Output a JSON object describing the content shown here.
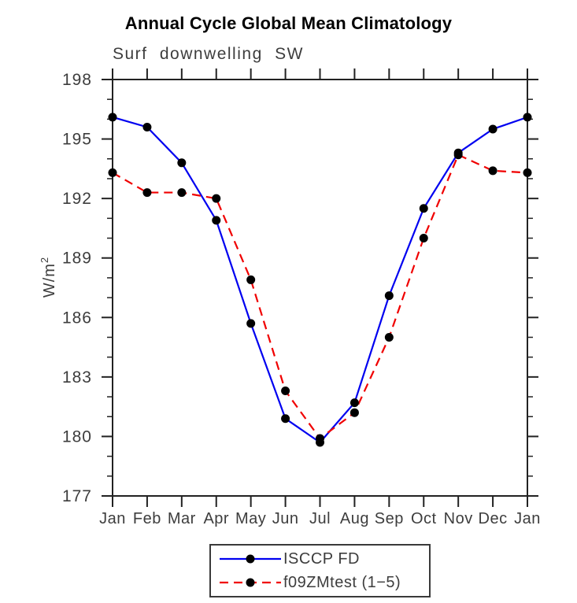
{
  "axes": {
    "y_axis_title": "W/m",
    "y_axis_title_sup": "2"
  },
  "chart_data": {
    "type": "line",
    "title": "Annual Cycle Global Mean Climatology",
    "subtitle": "Surf downwelling SW",
    "ylabel": "W/m²",
    "xlabel": "",
    "categories": [
      "Jan",
      "Feb",
      "Mar",
      "Apr",
      "May",
      "Jun",
      "Jul",
      "Aug",
      "Sep",
      "Oct",
      "Nov",
      "Dec",
      "Jan"
    ],
    "series": [
      {
        "name": "ISCCP FD",
        "color": "#0000f0",
        "style": "solid",
        "marker": "circle",
        "values": [
          196.1,
          195.6,
          193.8,
          190.9,
          185.7,
          180.9,
          179.7,
          181.7,
          187.1,
          191.5,
          194.3,
          195.5,
          196.1
        ]
      },
      {
        "name": "f09ZMtest (1−5)",
        "color": "#f00000",
        "style": "dashed",
        "marker": "circle",
        "values": [
          193.3,
          192.3,
          192.3,
          192.0,
          187.9,
          182.3,
          179.9,
          181.2,
          185.0,
          190.0,
          194.2,
          193.4,
          193.3
        ]
      }
    ],
    "ylim": [
      177,
      198
    ],
    "yticks_major": [
      177,
      180,
      183,
      186,
      189,
      192,
      195,
      198
    ],
    "ytick_minor_step": 1,
    "grid": false,
    "legend_position": "bottom-center",
    "marker_color": "#000000",
    "colors": {
      "frame": "#222222",
      "text": "#3d3d3d"
    }
  }
}
